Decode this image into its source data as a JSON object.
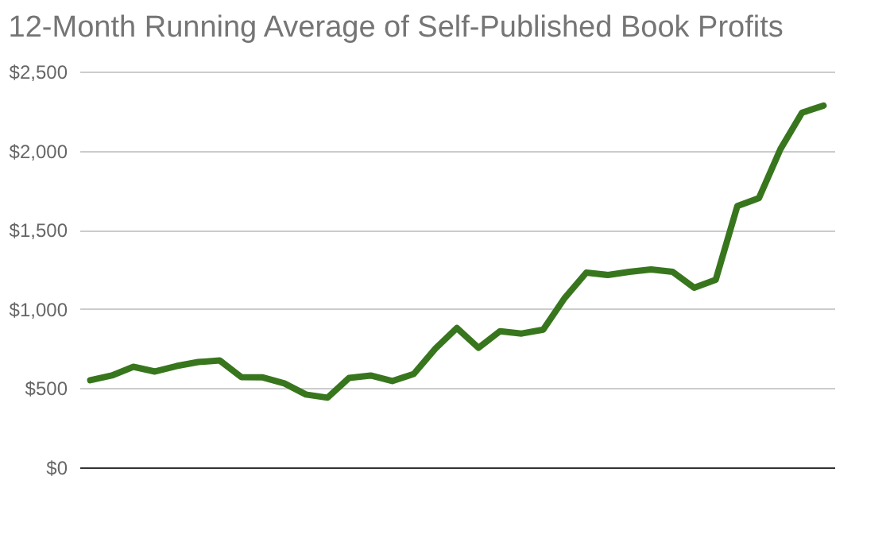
{
  "chart_data": {
    "type": "line",
    "title": "12-Month Running Average of Self-Published Book Profits",
    "categories": [
      null,
      null,
      null,
      null,
      null,
      null,
      null,
      null,
      null,
      null,
      null,
      null,
      null,
      null,
      null,
      null,
      null,
      null,
      null,
      null,
      null,
      null,
      null,
      null,
      null,
      null,
      null,
      null,
      null,
      null,
      null,
      null,
      null,
      null,
      null
    ],
    "series": [
      {
        "color": "#38761d",
        "values": [
          550,
          580,
          635,
          605,
          640,
          665,
          675,
          570,
          568,
          530,
          460,
          440,
          565,
          580,
          545,
          590,
          750,
          880,
          755,
          860,
          845,
          870,
          1070,
          1230,
          1215,
          1235,
          1250,
          1235,
          1135,
          1185,
          1650,
          1700,
          2010,
          2240,
          2285
        ]
      }
    ],
    "ylim": [
      0,
      2500
    ],
    "yticks": [
      {
        "value": 0,
        "label": "$0"
      },
      {
        "value": 500,
        "label": "$500"
      },
      {
        "value": 1000,
        "label": "$1,000"
      },
      {
        "value": 1500,
        "label": "$1,500"
      },
      {
        "value": 2000,
        "label": "$2,000"
      },
      {
        "value": 2500,
        "label": "$2,500"
      }
    ],
    "grid": "y",
    "tick_labels": "y",
    "marker": "none",
    "line_style": "solid"
  }
}
